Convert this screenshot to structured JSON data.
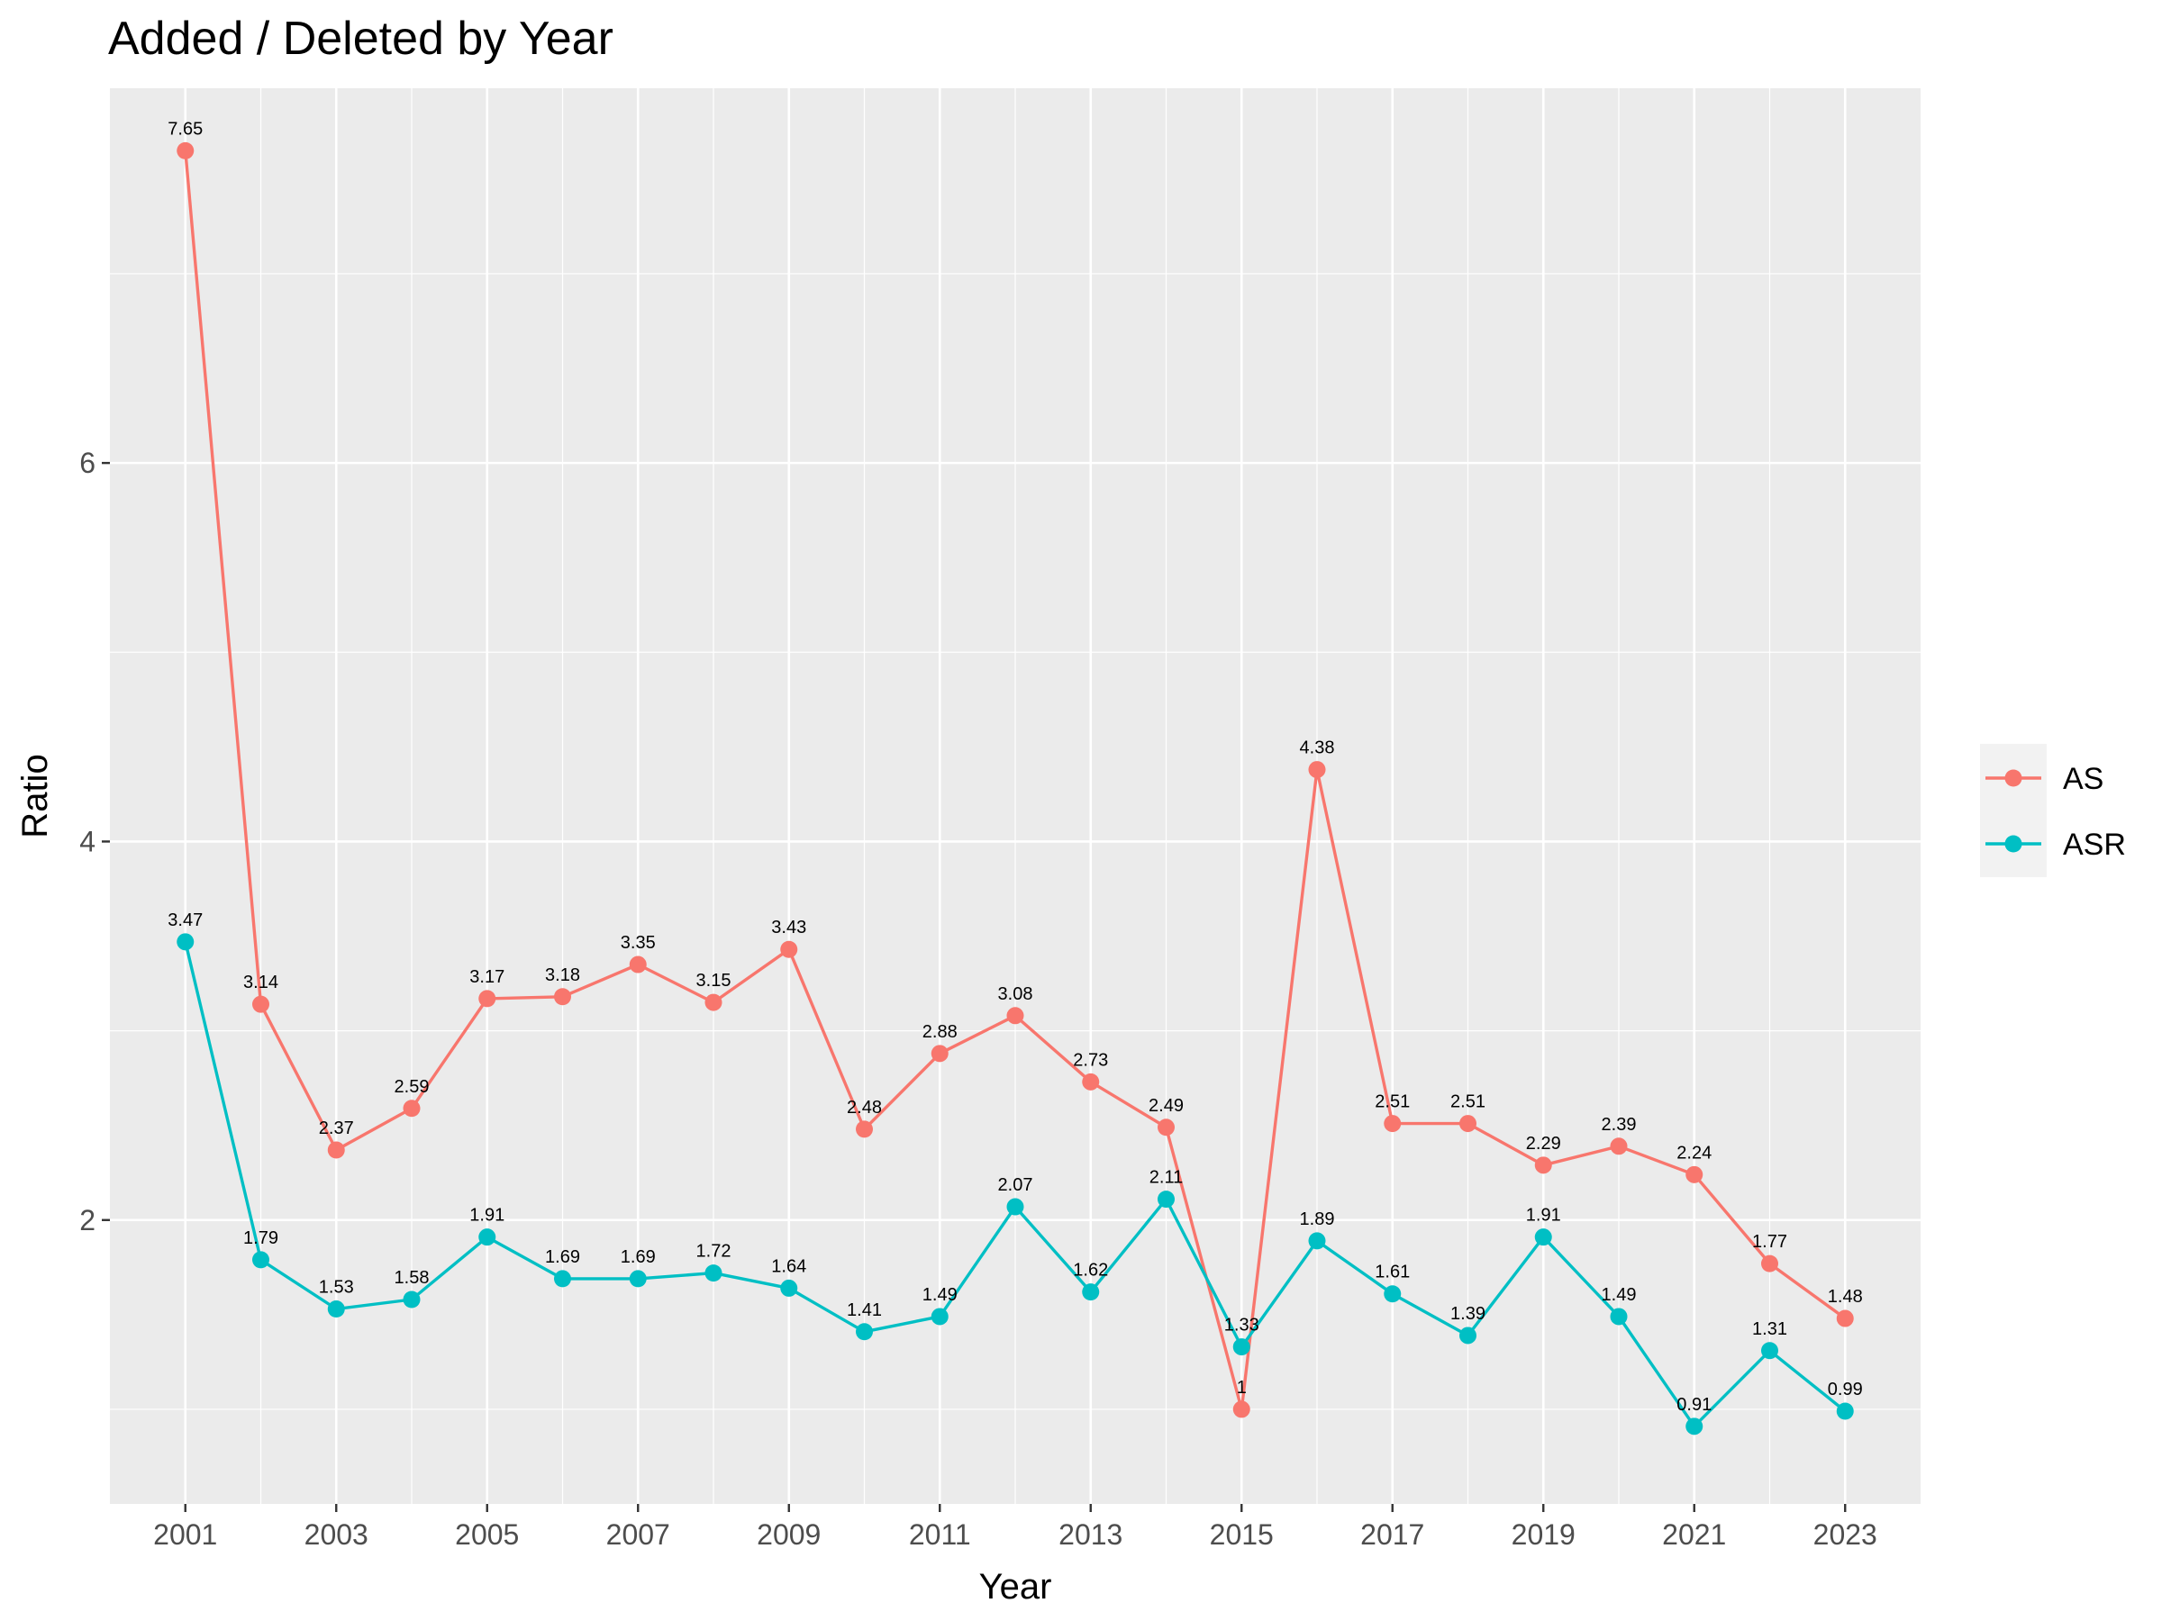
{
  "chart_data": {
    "type": "line",
    "title": "Added / Deleted by Year",
    "xlabel": "Year",
    "ylabel": "Ratio",
    "x": [
      2001,
      2002,
      2003,
      2004,
      2005,
      2006,
      2007,
      2008,
      2009,
      2010,
      2011,
      2012,
      2013,
      2014,
      2015,
      2016,
      2017,
      2018,
      2019,
      2020,
      2021,
      2022,
      2023
    ],
    "x_tick_labels": [
      "2001",
      "2003",
      "2005",
      "2007",
      "2009",
      "2011",
      "2013",
      "2015",
      "2017",
      "2019",
      "2021",
      "2023"
    ],
    "y_tick_labels": [
      "2",
      "4",
      "6"
    ],
    "xlim": [
      2000,
      2024
    ],
    "ylim": [
      0.5,
      7.98
    ],
    "grid": true,
    "legend_position": "right",
    "series": [
      {
        "name": "AS",
        "color": "#F8766D",
        "values": [
          7.65,
          3.14,
          2.37,
          2.59,
          3.17,
          3.18,
          3.35,
          3.15,
          3.43,
          2.48,
          2.88,
          3.08,
          2.73,
          2.49,
          1,
          4.38,
          2.51,
          2.51,
          2.29,
          2.39,
          2.24,
          1.77,
          1.48
        ],
        "labels": [
          "7.65",
          "3.14",
          "2.37",
          "2.59",
          "3.17",
          "3.18",
          "3.35",
          "3.15",
          "3.43",
          "2.48",
          "2.88",
          "3.08",
          "2.73",
          "2.49",
          "1",
          "4.38",
          "2.51",
          "2.51",
          "2.29",
          "2.39",
          "2.24",
          "1.77",
          "1.48"
        ]
      },
      {
        "name": "ASR",
        "color": "#00BFC4",
        "values": [
          3.47,
          1.79,
          1.53,
          1.58,
          1.91,
          1.69,
          1.69,
          1.72,
          1.64,
          1.41,
          1.49,
          2.07,
          1.62,
          2.11,
          1.33,
          1.89,
          1.61,
          1.39,
          1.91,
          1.49,
          0.91,
          1.31,
          0.99
        ],
        "labels": [
          "3.47",
          "1.79",
          "1.53",
          "1.58",
          "1.91",
          "1.69",
          "1.69",
          "1.72",
          "1.64",
          "1.41",
          "1.49",
          "2.07",
          "1.62",
          "2.11",
          "1.33",
          "1.89",
          "1.61",
          "1.39",
          "1.91",
          "1.49",
          "0.91",
          "1.31",
          "0.99"
        ]
      }
    ],
    "panel_background": "#EBEBEB",
    "grid_color": "#FFFFFF"
  }
}
